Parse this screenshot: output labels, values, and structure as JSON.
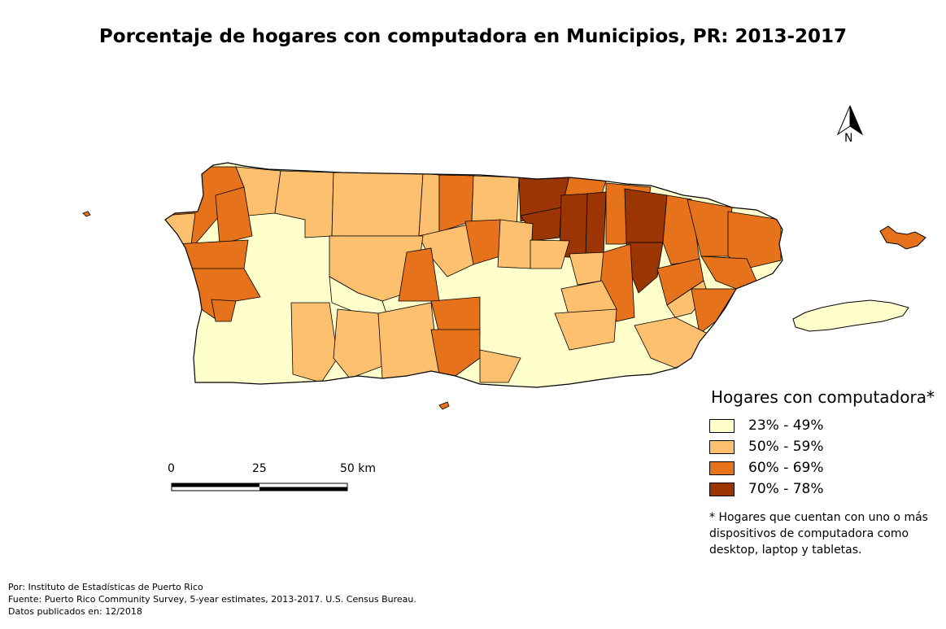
{
  "title": "Porcentaje de hogares con computadora en Municipios, PR: 2013-2017",
  "legend": {
    "title": "Hogares con computadora*",
    "items": [
      {
        "label": "23% - 49%",
        "color": "#ffffcc"
      },
      {
        "label": "50% - 59%",
        "color": "#fdc06e"
      },
      {
        "label": "60% - 69%",
        "color": "#e6731c"
      },
      {
        "label": "70% - 78%",
        "color": "#9b3604"
      }
    ]
  },
  "note": "* Hogares que cuentan con uno o más dispositivos de computadora como desktop, laptop y tabletas.",
  "scale_bar": {
    "labels": [
      "0",
      "25",
      "50 km"
    ]
  },
  "north_arrow": {
    "label": "N"
  },
  "footer": {
    "line1": "Por: Instituto de Estadísticas de Puerto Rico",
    "line2": "Fuente: Puerto Rico Community Survey, 5-year estimates, 2013-2017. U.S. Census Bureau.",
    "line3": "Datos publicados en: 12/2018"
  }
}
